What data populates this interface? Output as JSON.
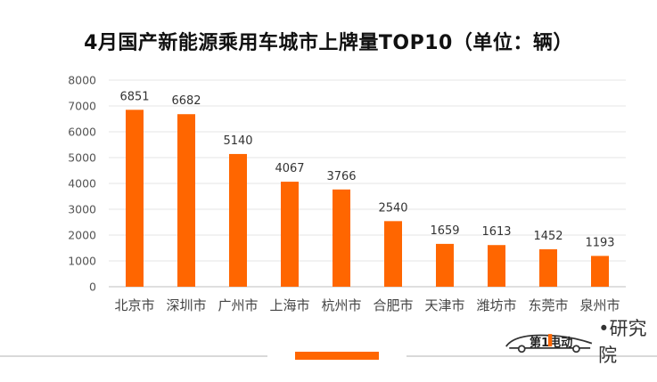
{
  "chart_data": {
    "type": "bar",
    "title": "4月国产新能源乘用车城市上牌量TOP10（单位：辆）",
    "categories": [
      "北京市",
      "深圳市",
      "广州市",
      "上海市",
      "杭州市",
      "合肥市",
      "天津市",
      "潍坊市",
      "东莞市",
      "泉州市"
    ],
    "values": [
      6851,
      6682,
      5140,
      4067,
      3766,
      2540,
      1659,
      1613,
      1452,
      1193
    ],
    "ylim": [
      0,
      8000
    ],
    "yticks": [
      0,
      1000,
      2000,
      3000,
      4000,
      5000,
      6000,
      7000,
      8000
    ],
    "xlabel": "",
    "ylabel": "",
    "grid": true,
    "bar_color": "#ff6600"
  },
  "footer": {
    "accent_color": "#ff6600",
    "brand_logo_text": "第1电动",
    "brand_suffix": "•研究院"
  }
}
